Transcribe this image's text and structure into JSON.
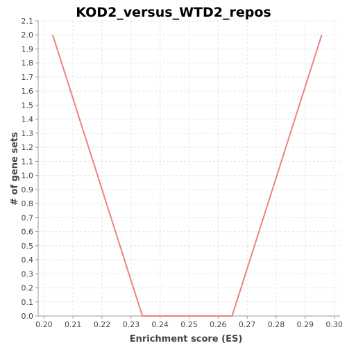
{
  "chart_data": {
    "type": "line",
    "title": "KOD2_versus_WTD2_repos",
    "xlabel": "Enrichment score (ES)",
    "ylabel": "# of gene sets",
    "xlim": [
      0.198,
      0.302
    ],
    "ylim": [
      0.0,
      2.1
    ],
    "x_ticks": [
      "0.20",
      "0.21",
      "0.22",
      "0.23",
      "0.24",
      "0.25",
      "0.26",
      "0.27",
      "0.28",
      "0.29",
      "0.30"
    ],
    "y_ticks": [
      "0.0",
      "0.1",
      "0.2",
      "0.3",
      "0.4",
      "0.5",
      "0.6",
      "0.7",
      "0.8",
      "0.9",
      "1.0",
      "1.1",
      "1.2",
      "1.3",
      "1.4",
      "1.5",
      "1.6",
      "1.7",
      "1.8",
      "1.9",
      "2.0",
      "2.1"
    ],
    "grid": true,
    "series": [
      {
        "color": "#f08080",
        "x": [
          0.203,
          0.2339,
          0.2648,
          0.2957
        ],
        "y": [
          2.0,
          0.0,
          0.0,
          2.0
        ]
      }
    ]
  }
}
